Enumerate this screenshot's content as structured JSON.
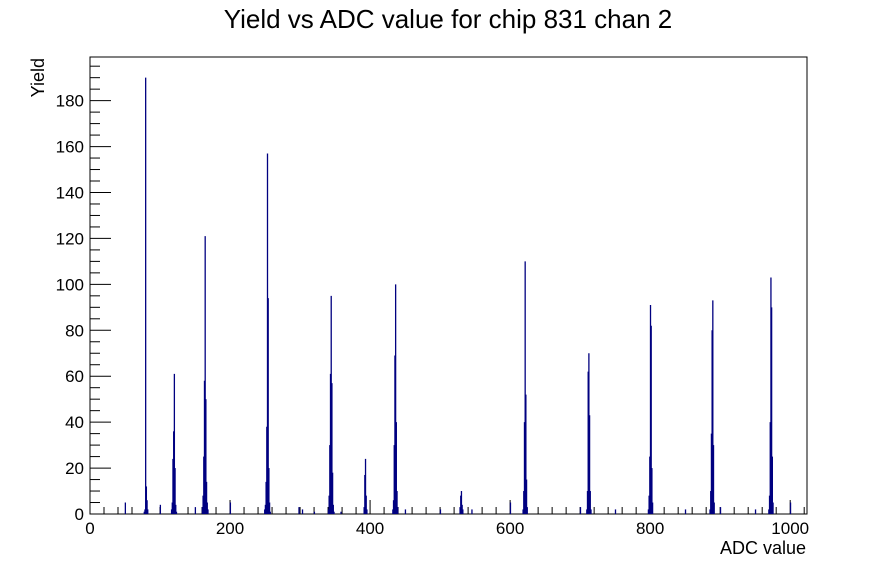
{
  "chart_data": {
    "type": "histogram",
    "title": "Yield vs ADC value for chip 831 chan 2",
    "xlabel": "ADC value",
    "ylabel": "Yield",
    "xlim": [
      0,
      1024
    ],
    "ylim": [
      0,
      199
    ],
    "x_ticks": [
      0,
      200,
      400,
      600,
      800,
      1000
    ],
    "y_ticks": [
      0,
      20,
      40,
      60,
      80,
      100,
      120,
      140,
      160,
      180
    ],
    "grid": false,
    "line_color": "#000080",
    "bins": [
      {
        "x": 50,
        "y": 5
      },
      {
        "x": 77,
        "y": 1
      },
      {
        "x": 78,
        "y": 2
      },
      {
        "x": 79,
        "y": 190
      },
      {
        "x": 80,
        "y": 12
      },
      {
        "x": 81,
        "y": 6
      },
      {
        "x": 82,
        "y": 2
      },
      {
        "x": 100,
        "y": 4
      },
      {
        "x": 116,
        "y": 2
      },
      {
        "x": 117,
        "y": 5
      },
      {
        "x": 118,
        "y": 24
      },
      {
        "x": 119,
        "y": 36
      },
      {
        "x": 120,
        "y": 61
      },
      {
        "x": 121,
        "y": 20
      },
      {
        "x": 122,
        "y": 4
      },
      {
        "x": 123,
        "y": 1
      },
      {
        "x": 150,
        "y": 3
      },
      {
        "x": 160,
        "y": 3
      },
      {
        "x": 161,
        "y": 8
      },
      {
        "x": 162,
        "y": 25
      },
      {
        "x": 163,
        "y": 58
      },
      {
        "x": 164,
        "y": 121
      },
      {
        "x": 165,
        "y": 50
      },
      {
        "x": 166,
        "y": 14
      },
      {
        "x": 167,
        "y": 5
      },
      {
        "x": 168,
        "y": 2
      },
      {
        "x": 200,
        "y": 5
      },
      {
        "x": 249,
        "y": 2
      },
      {
        "x": 250,
        "y": 4
      },
      {
        "x": 251,
        "y": 14
      },
      {
        "x": 252,
        "y": 38
      },
      {
        "x": 253,
        "y": 157
      },
      {
        "x": 254,
        "y": 94
      },
      {
        "x": 255,
        "y": 20
      },
      {
        "x": 256,
        "y": 5
      },
      {
        "x": 257,
        "y": 1
      },
      {
        "x": 298,
        "y": 3
      },
      {
        "x": 303,
        "y": 2
      },
      {
        "x": 320,
        "y": 1
      },
      {
        "x": 340,
        "y": 2
      },
      {
        "x": 341,
        "y": 8
      },
      {
        "x": 342,
        "y": 30
      },
      {
        "x": 343,
        "y": 61
      },
      {
        "x": 344,
        "y": 95
      },
      {
        "x": 345,
        "y": 57
      },
      {
        "x": 346,
        "y": 18
      },
      {
        "x": 347,
        "y": 4
      },
      {
        "x": 348,
        "y": 1
      },
      {
        "x": 358,
        "y": 1
      },
      {
        "x": 391,
        "y": 3
      },
      {
        "x": 392,
        "y": 17
      },
      {
        "x": 393,
        "y": 24
      },
      {
        "x": 394,
        "y": 8
      },
      {
        "x": 395,
        "y": 2
      },
      {
        "x": 432,
        "y": 2
      },
      {
        "x": 433,
        "y": 6
      },
      {
        "x": 434,
        "y": 30
      },
      {
        "x": 435,
        "y": 69
      },
      {
        "x": 436,
        "y": 100
      },
      {
        "x": 437,
        "y": 40
      },
      {
        "x": 438,
        "y": 10
      },
      {
        "x": 439,
        "y": 3
      },
      {
        "x": 450,
        "y": 2
      },
      {
        "x": 500,
        "y": 2
      },
      {
        "x": 528,
        "y": 3
      },
      {
        "x": 529,
        "y": 8
      },
      {
        "x": 530,
        "y": 10
      },
      {
        "x": 531,
        "y": 4
      },
      {
        "x": 532,
        "y": 2
      },
      {
        "x": 545,
        "y": 2
      },
      {
        "x": 600,
        "y": 5
      },
      {
        "x": 618,
        "y": 2
      },
      {
        "x": 619,
        "y": 10
      },
      {
        "x": 620,
        "y": 40
      },
      {
        "x": 621,
        "y": 110
      },
      {
        "x": 622,
        "y": 52
      },
      {
        "x": 623,
        "y": 15
      },
      {
        "x": 624,
        "y": 3
      },
      {
        "x": 700,
        "y": 3
      },
      {
        "x": 709,
        "y": 2
      },
      {
        "x": 710,
        "y": 10
      },
      {
        "x": 711,
        "y": 62
      },
      {
        "x": 712,
        "y": 70
      },
      {
        "x": 713,
        "y": 43
      },
      {
        "x": 714,
        "y": 10
      },
      {
        "x": 715,
        "y": 2
      },
      {
        "x": 750,
        "y": 2
      },
      {
        "x": 797,
        "y": 2
      },
      {
        "x": 798,
        "y": 8
      },
      {
        "x": 799,
        "y": 25
      },
      {
        "x": 800,
        "y": 91
      },
      {
        "x": 801,
        "y": 82
      },
      {
        "x": 802,
        "y": 20
      },
      {
        "x": 803,
        "y": 5
      },
      {
        "x": 850,
        "y": 2
      },
      {
        "x": 885,
        "y": 2
      },
      {
        "x": 886,
        "y": 10
      },
      {
        "x": 887,
        "y": 35
      },
      {
        "x": 888,
        "y": 80
      },
      {
        "x": 889,
        "y": 93
      },
      {
        "x": 890,
        "y": 30
      },
      {
        "x": 891,
        "y": 5
      },
      {
        "x": 900,
        "y": 3
      },
      {
        "x": 950,
        "y": 2
      },
      {
        "x": 969,
        "y": 2
      },
      {
        "x": 970,
        "y": 8
      },
      {
        "x": 971,
        "y": 40
      },
      {
        "x": 972,
        "y": 103
      },
      {
        "x": 973,
        "y": 90
      },
      {
        "x": 974,
        "y": 25
      },
      {
        "x": 975,
        "y": 5
      },
      {
        "x": 1000,
        "y": 5
      }
    ]
  }
}
